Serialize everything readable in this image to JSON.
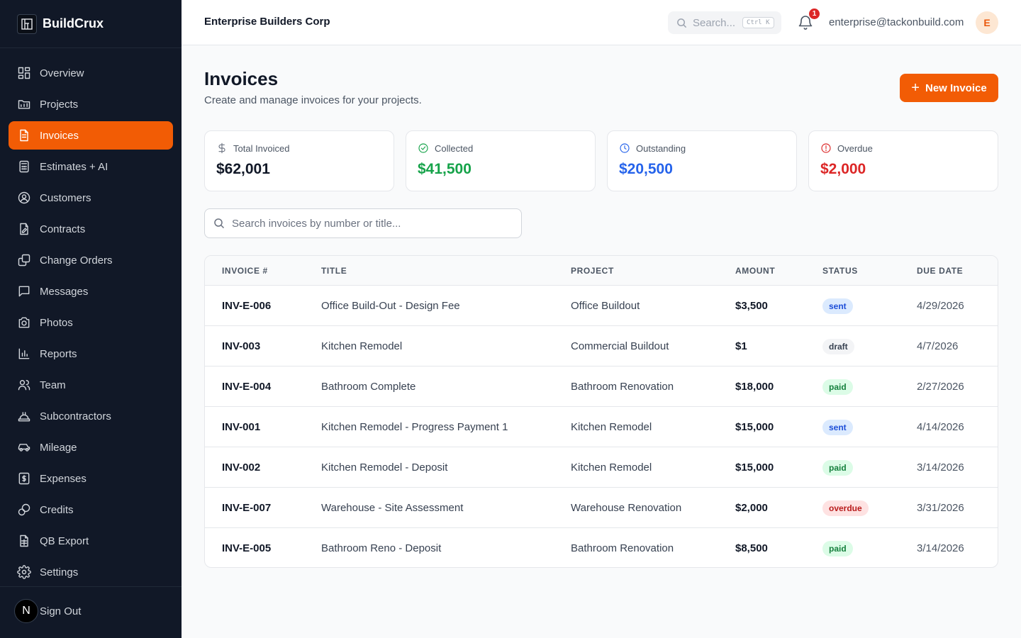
{
  "brand": {
    "name": "BuildCrux"
  },
  "sidebar": {
    "items": [
      {
        "label": "Overview",
        "icon": "grid-icon",
        "active": false
      },
      {
        "label": "Projects",
        "icon": "folder-icon",
        "active": false
      },
      {
        "label": "Invoices",
        "icon": "file-text-icon",
        "active": true
      },
      {
        "label": "Estimates + AI",
        "icon": "calculator-icon",
        "active": false
      },
      {
        "label": "Customers",
        "icon": "user-circle-icon",
        "active": false
      },
      {
        "label": "Contracts",
        "icon": "file-signature-icon",
        "active": false
      },
      {
        "label": "Change Orders",
        "icon": "copy-icon",
        "active": false
      },
      {
        "label": "Messages",
        "icon": "message-icon",
        "active": false
      },
      {
        "label": "Photos",
        "icon": "camera-icon",
        "active": false
      },
      {
        "label": "Reports",
        "icon": "bar-chart-icon",
        "active": false
      },
      {
        "label": "Team",
        "icon": "users-icon",
        "active": false
      },
      {
        "label": "Subcontractors",
        "icon": "hard-hat-icon",
        "active": false
      },
      {
        "label": "Mileage",
        "icon": "car-icon",
        "active": false
      },
      {
        "label": "Expenses",
        "icon": "receipt-dollar-icon",
        "active": false
      },
      {
        "label": "Credits",
        "icon": "coins-icon",
        "active": false
      },
      {
        "label": "QB Export",
        "icon": "spreadsheet-icon",
        "active": false
      },
      {
        "label": "Settings",
        "icon": "gear-icon",
        "active": false
      }
    ],
    "badge_letter": "N",
    "signout_label": "Sign Out"
  },
  "topbar": {
    "org_name": "Enterprise Builders Corp",
    "search_placeholder": "Search...",
    "search_shortcut": "Ctrl K",
    "notification_count": "1",
    "user_email": "enterprise@tackonbuild.com",
    "avatar_letter": "E"
  },
  "page": {
    "title": "Invoices",
    "subtitle": "Create and manage invoices for your projects.",
    "new_button": "New Invoice"
  },
  "stats": [
    {
      "label": "Total Invoiced",
      "value": "$62,001",
      "color": "#111827",
      "icon": "dollar-icon",
      "icon_color": "#6b7280"
    },
    {
      "label": "Collected",
      "value": "$41,500",
      "color": "#16a34a",
      "icon": "check-circle-icon",
      "icon_color": "#16a34a"
    },
    {
      "label": "Outstanding",
      "value": "$20,500",
      "color": "#2563eb",
      "icon": "clock-icon",
      "icon_color": "#2563eb"
    },
    {
      "label": "Overdue",
      "value": "$2,000",
      "color": "#dc2626",
      "icon": "alert-circle-icon",
      "icon_color": "#dc2626"
    }
  ],
  "invoice_search": {
    "placeholder": "Search invoices by number or title..."
  },
  "table": {
    "columns": [
      "INVOICE #",
      "TITLE",
      "PROJECT",
      "AMOUNT",
      "STATUS",
      "DUE DATE"
    ],
    "rows": [
      {
        "number": "INV-E-006",
        "title": "Office Build-Out - Design Fee",
        "project": "Office Buildout",
        "amount": "$3,500",
        "status": "sent",
        "due": "4/29/2026"
      },
      {
        "number": "INV-003",
        "title": "Kitchen Remodel",
        "project": "Commercial Buildout",
        "amount": "$1",
        "status": "draft",
        "due": "4/7/2026"
      },
      {
        "number": "INV-E-004",
        "title": "Bathroom Complete",
        "project": "Bathroom Renovation",
        "amount": "$18,000",
        "status": "paid",
        "due": "2/27/2026"
      },
      {
        "number": "INV-001",
        "title": "Kitchen Remodel - Progress Payment 1",
        "project": "Kitchen Remodel",
        "amount": "$15,000",
        "status": "sent",
        "due": "4/14/2026"
      },
      {
        "number": "INV-002",
        "title": "Kitchen Remodel - Deposit",
        "project": "Kitchen Remodel",
        "amount": "$15,000",
        "status": "paid",
        "due": "3/14/2026"
      },
      {
        "number": "INV-E-007",
        "title": "Warehouse - Site Assessment",
        "project": "Warehouse Renovation",
        "amount": "$2,000",
        "status": "overdue",
        "due": "3/31/2026"
      },
      {
        "number": "INV-E-005",
        "title": "Bathroom Reno - Deposit",
        "project": "Bathroom Renovation",
        "amount": "$8,500",
        "status": "paid",
        "due": "3/14/2026"
      }
    ]
  },
  "status_colors": {
    "sent": {
      "bg": "#dbeafe",
      "fg": "#1d4ed8"
    },
    "draft": {
      "bg": "#f3f4f6",
      "fg": "#374151"
    },
    "paid": {
      "bg": "#dcfce7",
      "fg": "#15803d"
    },
    "overdue": {
      "bg": "#fee2e2",
      "fg": "#b91c1c"
    }
  },
  "colors": {
    "accent": "#f25c05",
    "sidebar_bg": "#111827"
  }
}
